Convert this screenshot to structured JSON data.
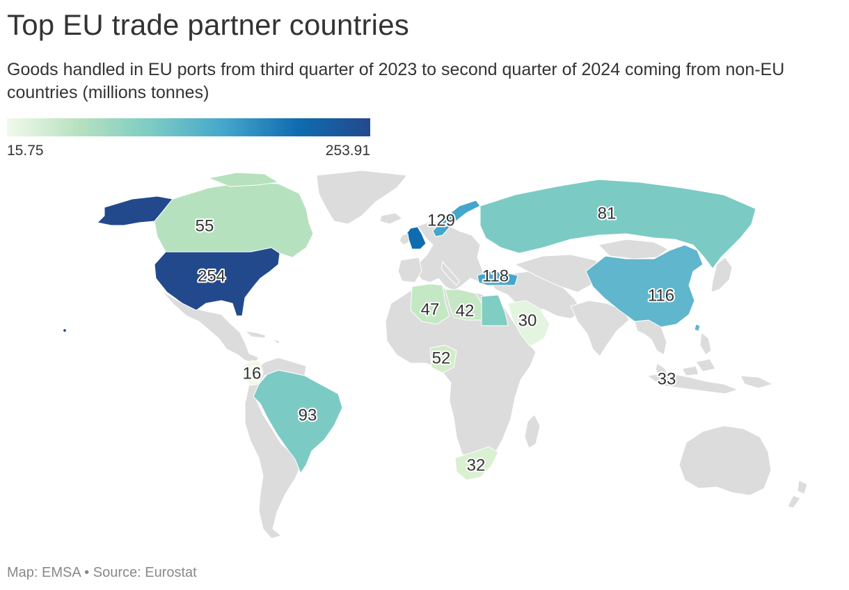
{
  "header": {
    "title": "Top EU trade partner countries",
    "subtitle": "Goods handled in EU ports from third quarter of 2023 to second quarter of 2024 coming from non-EU countries (millions tonnes)"
  },
  "legend": {
    "min_label": "15.75",
    "max_label": "253.91",
    "min": 15.75,
    "max": 253.91,
    "colors": [
      "#f2f9ea",
      "#b6e1bf",
      "#7bcbc4",
      "#43a6cb",
      "#0f6cb0",
      "#23498d"
    ]
  },
  "map": {
    "land_color": "#dcdcdc",
    "labels": [
      {
        "id": "united-states",
        "value": 254
      },
      {
        "id": "united-kingdom",
        "value": 129
      },
      {
        "id": "turkey",
        "value": 118
      },
      {
        "id": "china",
        "value": 116
      },
      {
        "id": "brazil",
        "value": 93
      },
      {
        "id": "russia",
        "value": 81
      },
      {
        "id": "canada",
        "value": 55
      },
      {
        "id": "nigeria",
        "value": 52
      },
      {
        "id": "algeria",
        "value": 47
      },
      {
        "id": "libya",
        "value": 42
      },
      {
        "id": "malaysia",
        "value": 33
      },
      {
        "id": "south-africa",
        "value": 32
      },
      {
        "id": "saudi-arabia",
        "value": 30
      },
      {
        "id": "colombia",
        "value": 16
      }
    ]
  },
  "footer": {
    "map_credit": "Map: EMSA",
    "separator": "•",
    "source": "Source: Eurostat"
  }
}
